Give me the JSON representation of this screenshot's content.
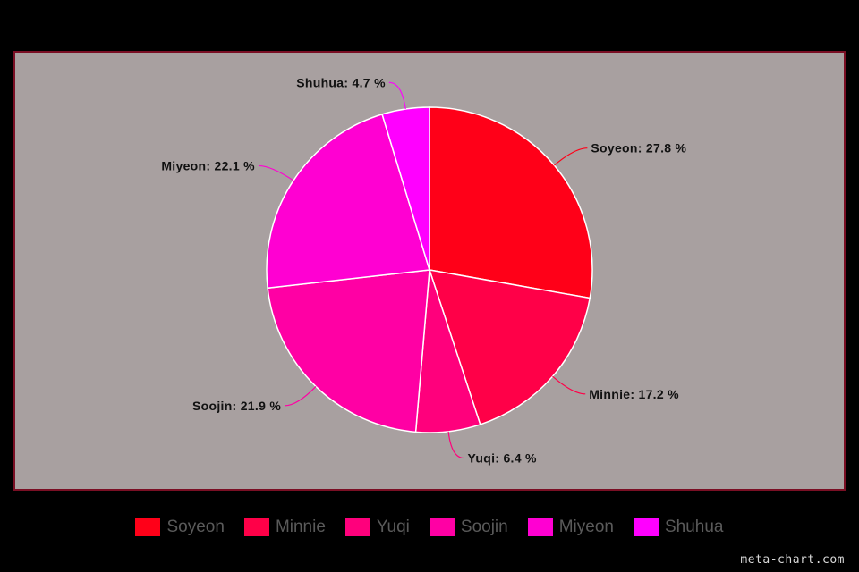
{
  "chart_data": {
    "type": "pie",
    "title": "",
    "categories": [
      "Soyeon",
      "Minnie",
      "Yuqi",
      "Soojin",
      "Miyeon",
      "Shuhua"
    ],
    "values": [
      27.8,
      17.2,
      6.4,
      21.9,
      22.1,
      4.7
    ],
    "unit": "%",
    "labels": [
      "Soyeon: 27.8 %",
      "Minnie: 17.2 %",
      "Yuqi: 6.4 %",
      "Soojin: 21.9 %",
      "Miyeon: 22.1 %",
      "Shuhua: 4.7 %"
    ],
    "colors": [
      "#ff0018",
      "#ff0048",
      "#ff007c",
      "#ff00a4",
      "#ff00d2",
      "#ff00ff"
    ],
    "legend_position": "bottom",
    "start_angle": "top, clockwise",
    "plot_background": "#a8a0a0",
    "plot_border": "#7a0f24",
    "slice_border": "#ffffff"
  },
  "watermark": "meta-chart.com"
}
